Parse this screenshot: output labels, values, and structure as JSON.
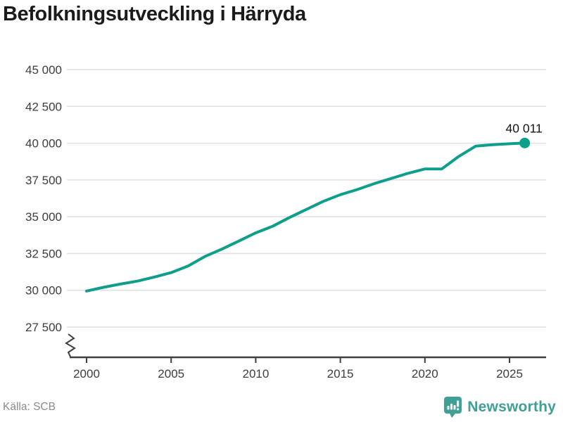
{
  "title": "Befolkningsutveckling i Härryda",
  "footer": {
    "source": "Källa: SCB",
    "brand": "Newsworthy"
  },
  "colors": {
    "line": "#0d9e8c",
    "end_dot": "#0d9e8c",
    "brand": "#3fa096",
    "grid": "#e0e0e0",
    "axis": "#3f3f3f",
    "tick_text": "#3d3d3d",
    "title_text": "#1b1b1b",
    "muted_text": "#8b8b90",
    "background": "#ffffff"
  },
  "chart_data": {
    "type": "line",
    "title": "Befolkningsutveckling i Härryda",
    "xlabel": "",
    "ylabel": "",
    "ylim": [
      27500,
      45000
    ],
    "xlim": [
      2000,
      2026
    ],
    "grid": "horizontal-only",
    "legend": "none",
    "y_axis_break_at_bottom": true,
    "y_ticks": [
      {
        "v": 45000,
        "label": "45 000"
      },
      {
        "v": 42500,
        "label": "42 500"
      },
      {
        "v": 40000,
        "label": "40 000"
      },
      {
        "v": 37500,
        "label": "37 500"
      },
      {
        "v": 35000,
        "label": "35 000"
      },
      {
        "v": 32500,
        "label": "32 500"
      },
      {
        "v": 30000,
        "label": "30 000"
      },
      {
        "v": 27500,
        "label": "27 500"
      }
    ],
    "x_ticks": [
      {
        "v": 2000,
        "label": "2000"
      },
      {
        "v": 2005,
        "label": "2005"
      },
      {
        "v": 2010,
        "label": "2010"
      },
      {
        "v": 2015,
        "label": "2015"
      },
      {
        "v": 2020,
        "label": "2020"
      },
      {
        "v": 2025,
        "label": "2025"
      }
    ],
    "series": [
      {
        "name": "Befolkning",
        "points": [
          [
            2000,
            29950
          ],
          [
            2001,
            30200
          ],
          [
            2002,
            30420
          ],
          [
            2003,
            30620
          ],
          [
            2004,
            30900
          ],
          [
            2005,
            31200
          ],
          [
            2006,
            31650
          ],
          [
            2007,
            32300
          ],
          [
            2008,
            32800
          ],
          [
            2009,
            33350
          ],
          [
            2010,
            33900
          ],
          [
            2011,
            34350
          ],
          [
            2012,
            34950
          ],
          [
            2013,
            35500
          ],
          [
            2014,
            36050
          ],
          [
            2015,
            36500
          ],
          [
            2016,
            36850
          ],
          [
            2017,
            37250
          ],
          [
            2018,
            37600
          ],
          [
            2019,
            37950
          ],
          [
            2020,
            38250
          ],
          [
            2021,
            38250
          ],
          [
            2022,
            39100
          ],
          [
            2023,
            39800
          ],
          [
            2024,
            39900
          ],
          [
            2025,
            39960
          ],
          [
            2025.9,
            40011
          ]
        ]
      }
    ],
    "end_point_label": "40 011"
  }
}
